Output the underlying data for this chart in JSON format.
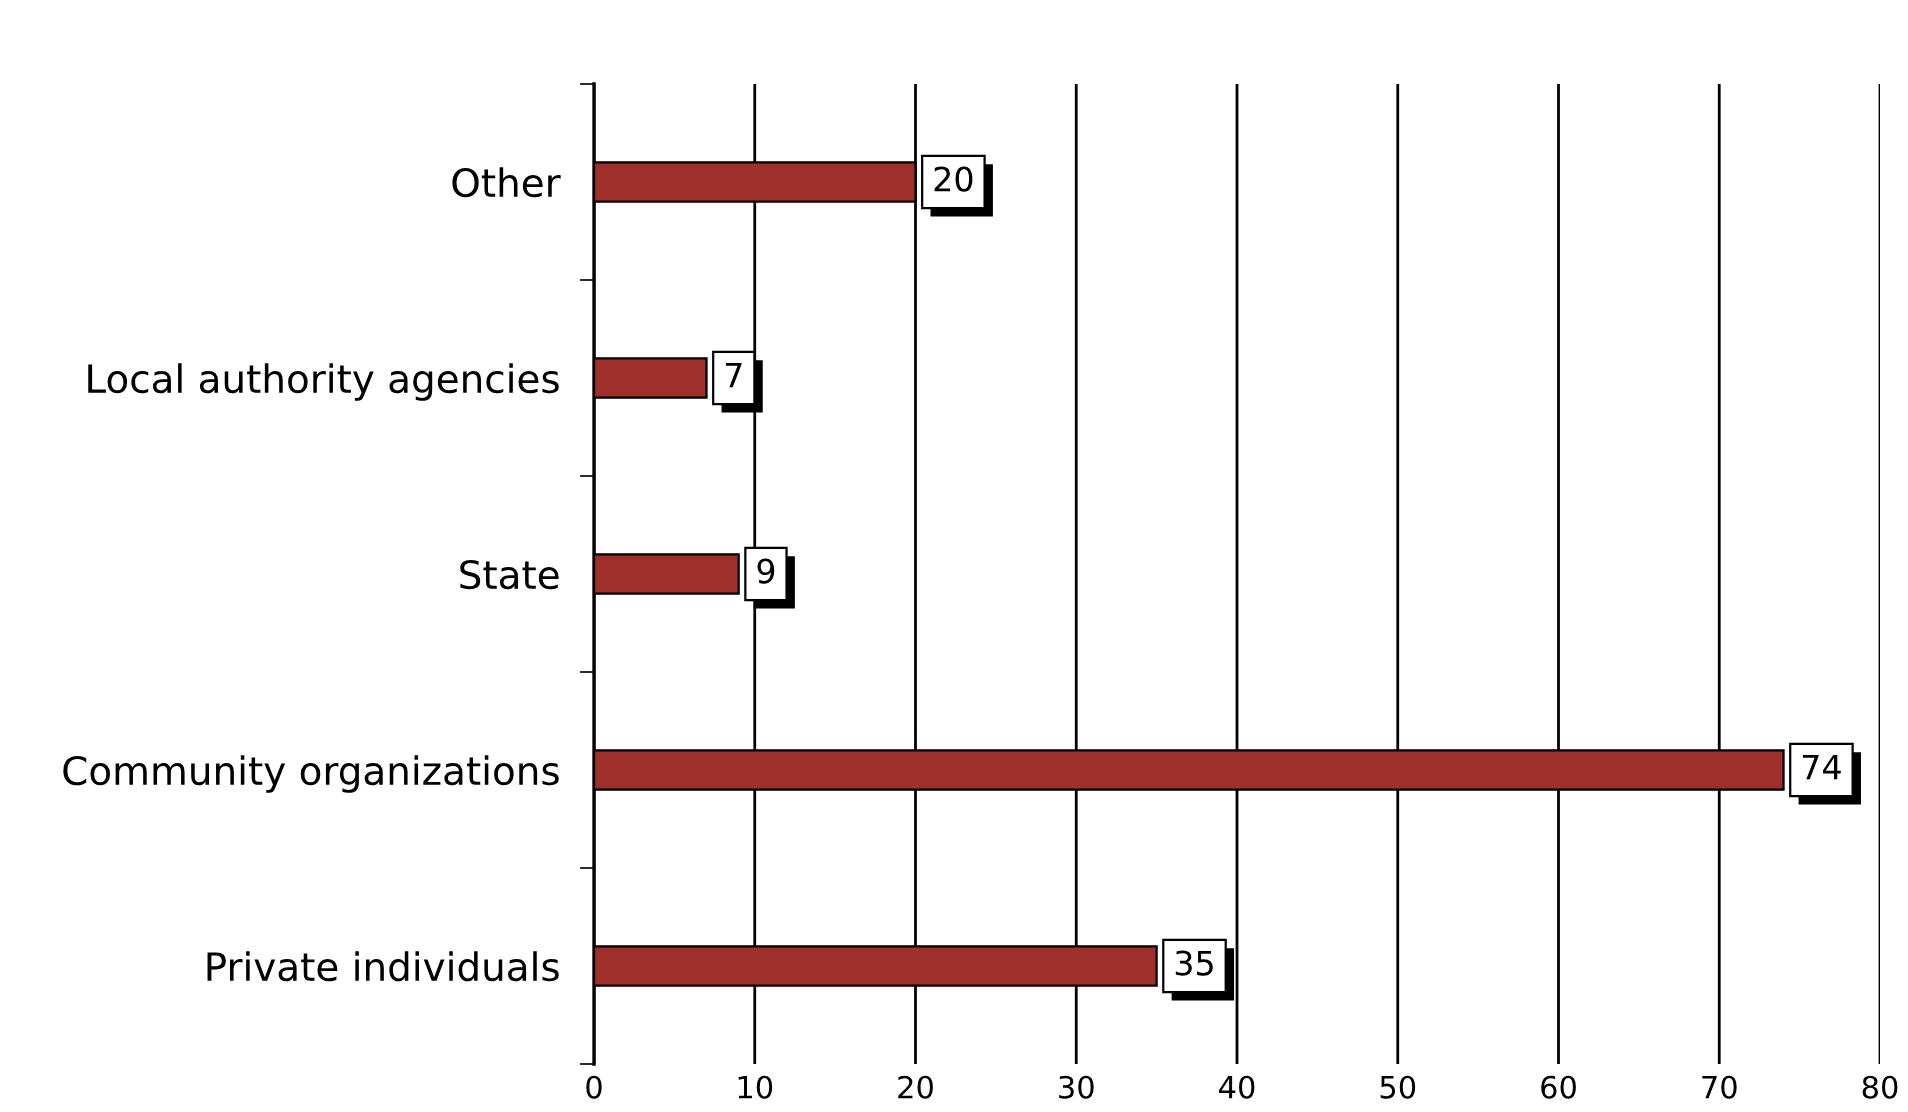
{
  "chart_data": {
    "type": "bar",
    "orientation": "horizontal",
    "categories": [
      "Other",
      "Local authority agencies",
      "State",
      "Community organizations",
      "Private individuals"
    ],
    "values": [
      20,
      7,
      9,
      74,
      35
    ],
    "color": "#9e2f2b",
    "xlim": [
      0,
      80
    ],
    "xticks": [
      0,
      10,
      20,
      30,
      40,
      50,
      60,
      70,
      80
    ],
    "grid": "x",
    "data_labels": true,
    "legend": false
  }
}
